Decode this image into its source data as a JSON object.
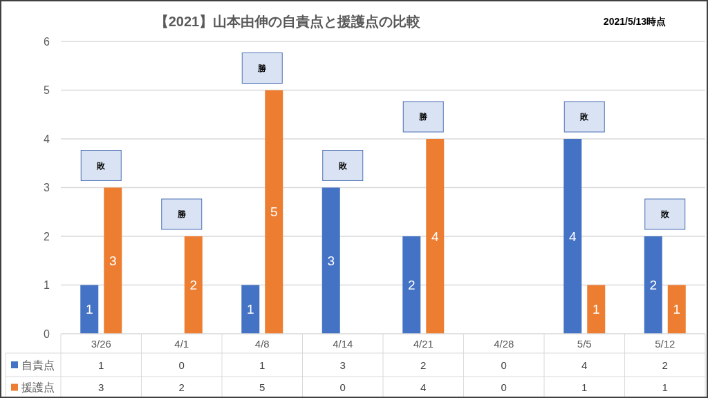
{
  "chart_data": {
    "type": "bar",
    "title": "【2021】山本由伸の自責点と援護点の比較",
    "subtitle": "2021/5/13時点",
    "categories": [
      "3/26",
      "4/1",
      "4/8",
      "4/14",
      "4/21",
      "4/28",
      "5/5",
      "5/12"
    ],
    "series": [
      {
        "name": "自責点",
        "color": "#4472c4",
        "values": [
          1,
          0,
          1,
          3,
          2,
          0,
          4,
          2
        ],
        "value_labels": [
          "1",
          "0",
          "1",
          "3",
          "2",
          "0",
          "4",
          "2"
        ]
      },
      {
        "name": "援護点",
        "color": "#ed7d31",
        "values": [
          3,
          2,
          5,
          0,
          4,
          0,
          1,
          1
        ],
        "value_labels": [
          "3",
          "2",
          "5",
          "0",
          "4",
          "0",
          "1",
          "1"
        ]
      }
    ],
    "ylim": [
      0,
      6
    ],
    "yticks": [
      0,
      1,
      2,
      3,
      4,
      5,
      6
    ],
    "grid": "y",
    "legend": "bottom",
    "data_labels": true,
    "annotations": [
      {
        "text": "敗",
        "x": "3/26",
        "y": 3
      },
      {
        "text": "勝",
        "x": "4/1",
        "y": 2
      },
      {
        "text": "勝",
        "x": "4/8",
        "y": 5
      },
      {
        "text": "敗",
        "x": "4/14",
        "y": 3
      },
      {
        "text": "勝",
        "x": "4/21",
        "y": 4
      },
      {
        "text": "敗",
        "x": "5/5",
        "y": 4
      },
      {
        "text": "敗",
        "x": "5/12",
        "y": 2
      }
    ]
  }
}
